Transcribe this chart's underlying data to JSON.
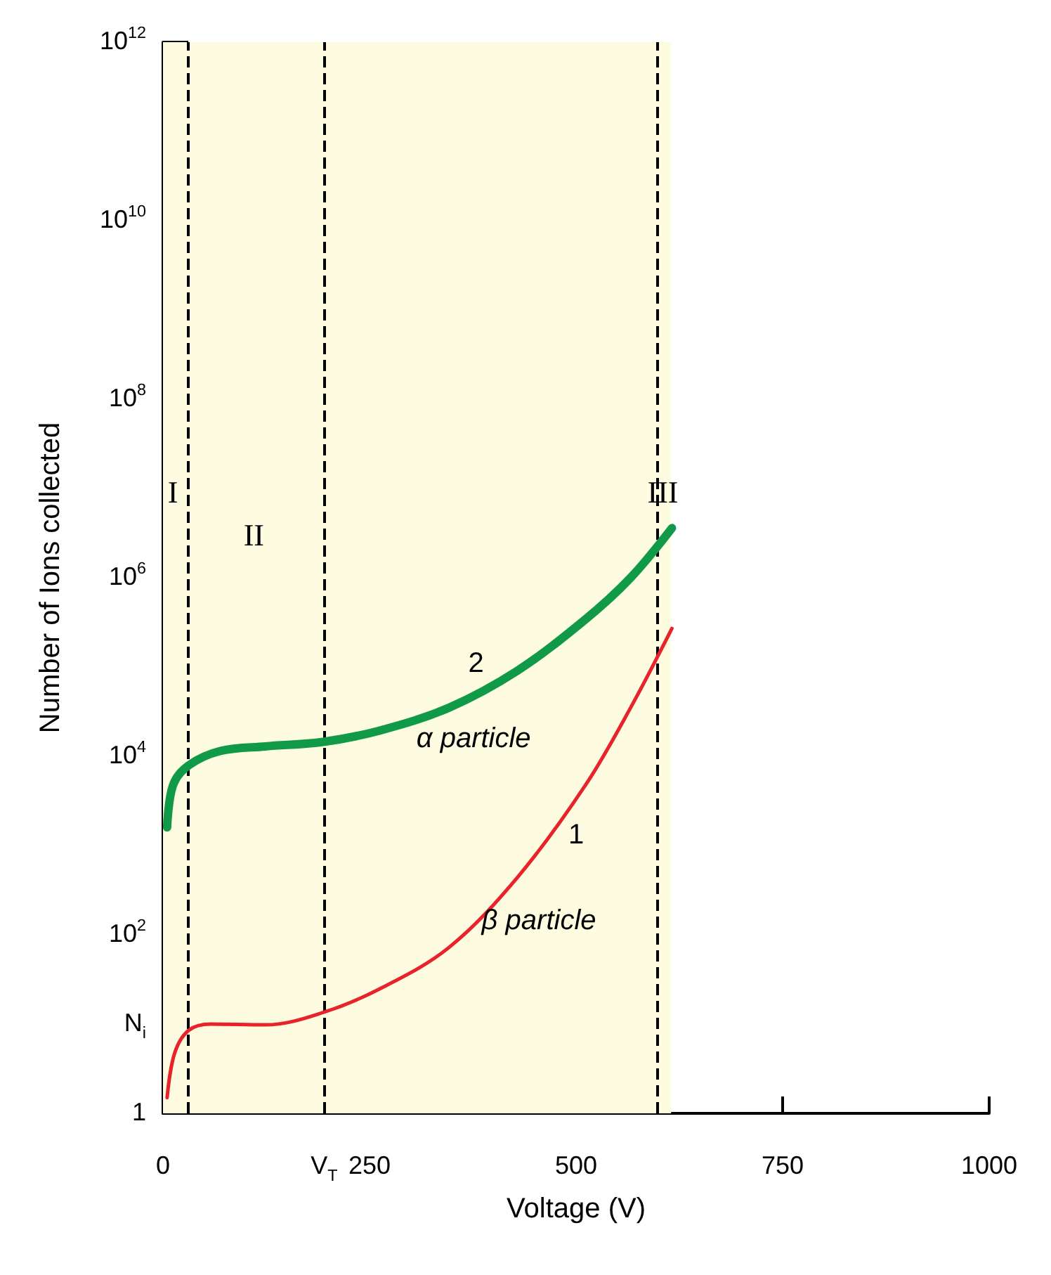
{
  "chart_data": {
    "type": "line",
    "xlabel": "Voltage (V)",
    "ylabel": "Number of Ions collected",
    "log": "y",
    "grid": false,
    "marker": "none",
    "xlim": [
      0,
      1000
    ],
    "xticks": [
      0,
      {
        "value": 195,
        "label": "V$_{T}$"
      },
      250,
      500,
      750,
      1000
    ],
    "ylim": [
      1,
      1000000000000
    ],
    "yticks": [
      1,
      {
        "value": 10,
        "label": "N$_{i}$"
      },
      {
        "value": 100,
        "label": "10$^{2}$"
      },
      {
        "value": 10000,
        "label": "10$^{4}$"
      },
      {
        "value": 1000000,
        "label": "10$^{6}$"
      },
      {
        "value": 100000000,
        "label": "10$^{8}$"
      },
      {
        "value": 10000000000,
        "label": "10$^{10}$"
      },
      {
        "value": 1000000000000,
        "label": "10$^{12}$"
      }
    ],
    "series": [
      {
        "color": "#e8232a",
        "x": [
          5,
          14,
          31,
          58,
          124,
          194,
          263,
          346,
          429,
          511,
          566,
          616
        ],
        "values": [
          1.5,
          4.7,
          8.5,
          10,
          9.8,
          13.5,
          25,
          72,
          440,
          4700,
          35000,
          270000
        ]
      },
      {
        "color": "#109a48",
        "x": [
          5,
          12,
          31,
          70,
          124,
          194,
          263,
          346,
          429,
          511,
          566,
          616
        ],
        "values": [
          1600,
          4700,
          7900,
          11500,
          12900,
          14500,
          19500,
          35000,
          91000,
          340000,
          1000000,
          3600000
        ]
      }
    ],
    "ref_lines": [
      {
        "axis": "x",
        "value": 31,
        "line_style": "dashed",
        "color": "#000000"
      },
      {
        "axis": "x",
        "value": 195,
        "line_style": "dashed",
        "color": "#000000"
      },
      {
        "axis": "x",
        "value": 598,
        "line_style": "dashed",
        "color": "#000000"
      }
    ],
    "bands": [
      {
        "axis": "x",
        "from": 0,
        "to": 615,
        "color": "#fdfbe0"
      }
    ],
    "annotations": [
      "I",
      "II",
      "III",
      "2",
      "α particle",
      "1",
      "β particle"
    ]
  }
}
